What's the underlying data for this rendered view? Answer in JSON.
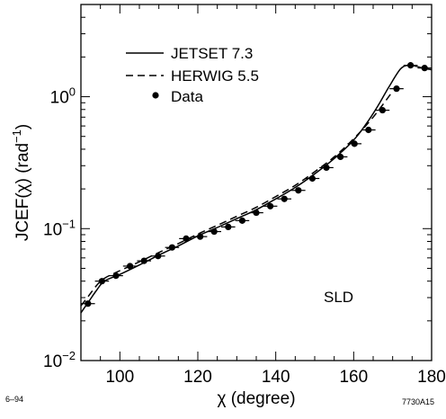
{
  "chart_data": {
    "type": "line",
    "title": "",
    "xlabel": "χ  (degree)",
    "ylabel": "JCEF(χ)   (rad",
    "ylabel_superscript": "−1",
    "ylabel_close": ")",
    "xlim": [
      90,
      180
    ],
    "ylim": [
      0.01,
      5
    ],
    "yscale": "log",
    "x_ticks": [
      {
        "value": 100,
        "label": "100"
      },
      {
        "value": 120,
        "label": "120"
      },
      {
        "value": 140,
        "label": "140"
      },
      {
        "value": 160,
        "label": "160"
      },
      {
        "value": 180,
        "label": "180"
      }
    ],
    "y_ticks": [
      {
        "value": 0.01,
        "base": "10",
        "exp": "−2"
      },
      {
        "value": 0.1,
        "base": "10",
        "exp": "−1"
      },
      {
        "value": 1,
        "base": "10",
        "exp": "0"
      }
    ],
    "legend": {
      "placement": "top-left",
      "entries": [
        {
          "label": "JETSET 7.3",
          "style": "solid-line"
        },
        {
          "label": "HERWIG 5.5",
          "style": "dashed-line"
        },
        {
          "label": "Data",
          "style": "filled-circle"
        }
      ]
    },
    "series": [
      {
        "name": "JETSET 7.3",
        "style": "solid",
        "x": [
          90,
          92,
          94,
          96,
          100,
          105,
          110,
          115,
          120,
          125,
          130,
          135,
          140,
          145,
          150,
          155,
          160,
          163,
          166,
          169,
          172,
          174,
          176,
          178,
          180
        ],
        "y": [
          0.023,
          0.028,
          0.034,
          0.04,
          0.045,
          0.053,
          0.063,
          0.074,
          0.088,
          0.102,
          0.119,
          0.139,
          0.168,
          0.205,
          0.26,
          0.34,
          0.47,
          0.61,
          0.83,
          1.18,
          1.62,
          1.73,
          1.7,
          1.64,
          1.6
        ]
      },
      {
        "name": "HERWIG 5.5",
        "style": "dashed",
        "x": [
          90,
          92,
          94,
          96,
          100,
          105,
          110,
          115,
          120,
          125,
          130,
          135,
          140,
          145,
          150,
          155,
          160,
          165,
          170
        ],
        "y": [
          0.026,
          0.031,
          0.037,
          0.042,
          0.048,
          0.056,
          0.066,
          0.077,
          0.091,
          0.106,
          0.124,
          0.145,
          0.175,
          0.213,
          0.27,
          0.35,
          0.48,
          0.7,
          1.1
        ]
      },
      {
        "name": "Data",
        "style": "points",
        "x": [
          91.8,
          95.4,
          99.0,
          102.6,
          106.2,
          109.8,
          113.4,
          117.0,
          120.6,
          124.2,
          127.8,
          131.4,
          135.0,
          138.6,
          142.2,
          145.8,
          149.4,
          153.0,
          156.6,
          160.2,
          163.8,
          167.4,
          171.0,
          174.6,
          178.2
        ],
        "y": [
          0.027,
          0.04,
          0.044,
          0.052,
          0.057,
          0.062,
          0.072,
          0.084,
          0.087,
          0.095,
          0.103,
          0.115,
          0.132,
          0.148,
          0.168,
          0.195,
          0.24,
          0.29,
          0.35,
          0.44,
          0.56,
          0.79,
          1.15,
          1.73,
          1.65
        ],
        "xerr": 1.8
      }
    ],
    "annotations": [
      {
        "text": "SLD",
        "where": "lower-right"
      }
    ]
  },
  "footer": {
    "left_note": "6–94",
    "right_note": "7730A15"
  }
}
